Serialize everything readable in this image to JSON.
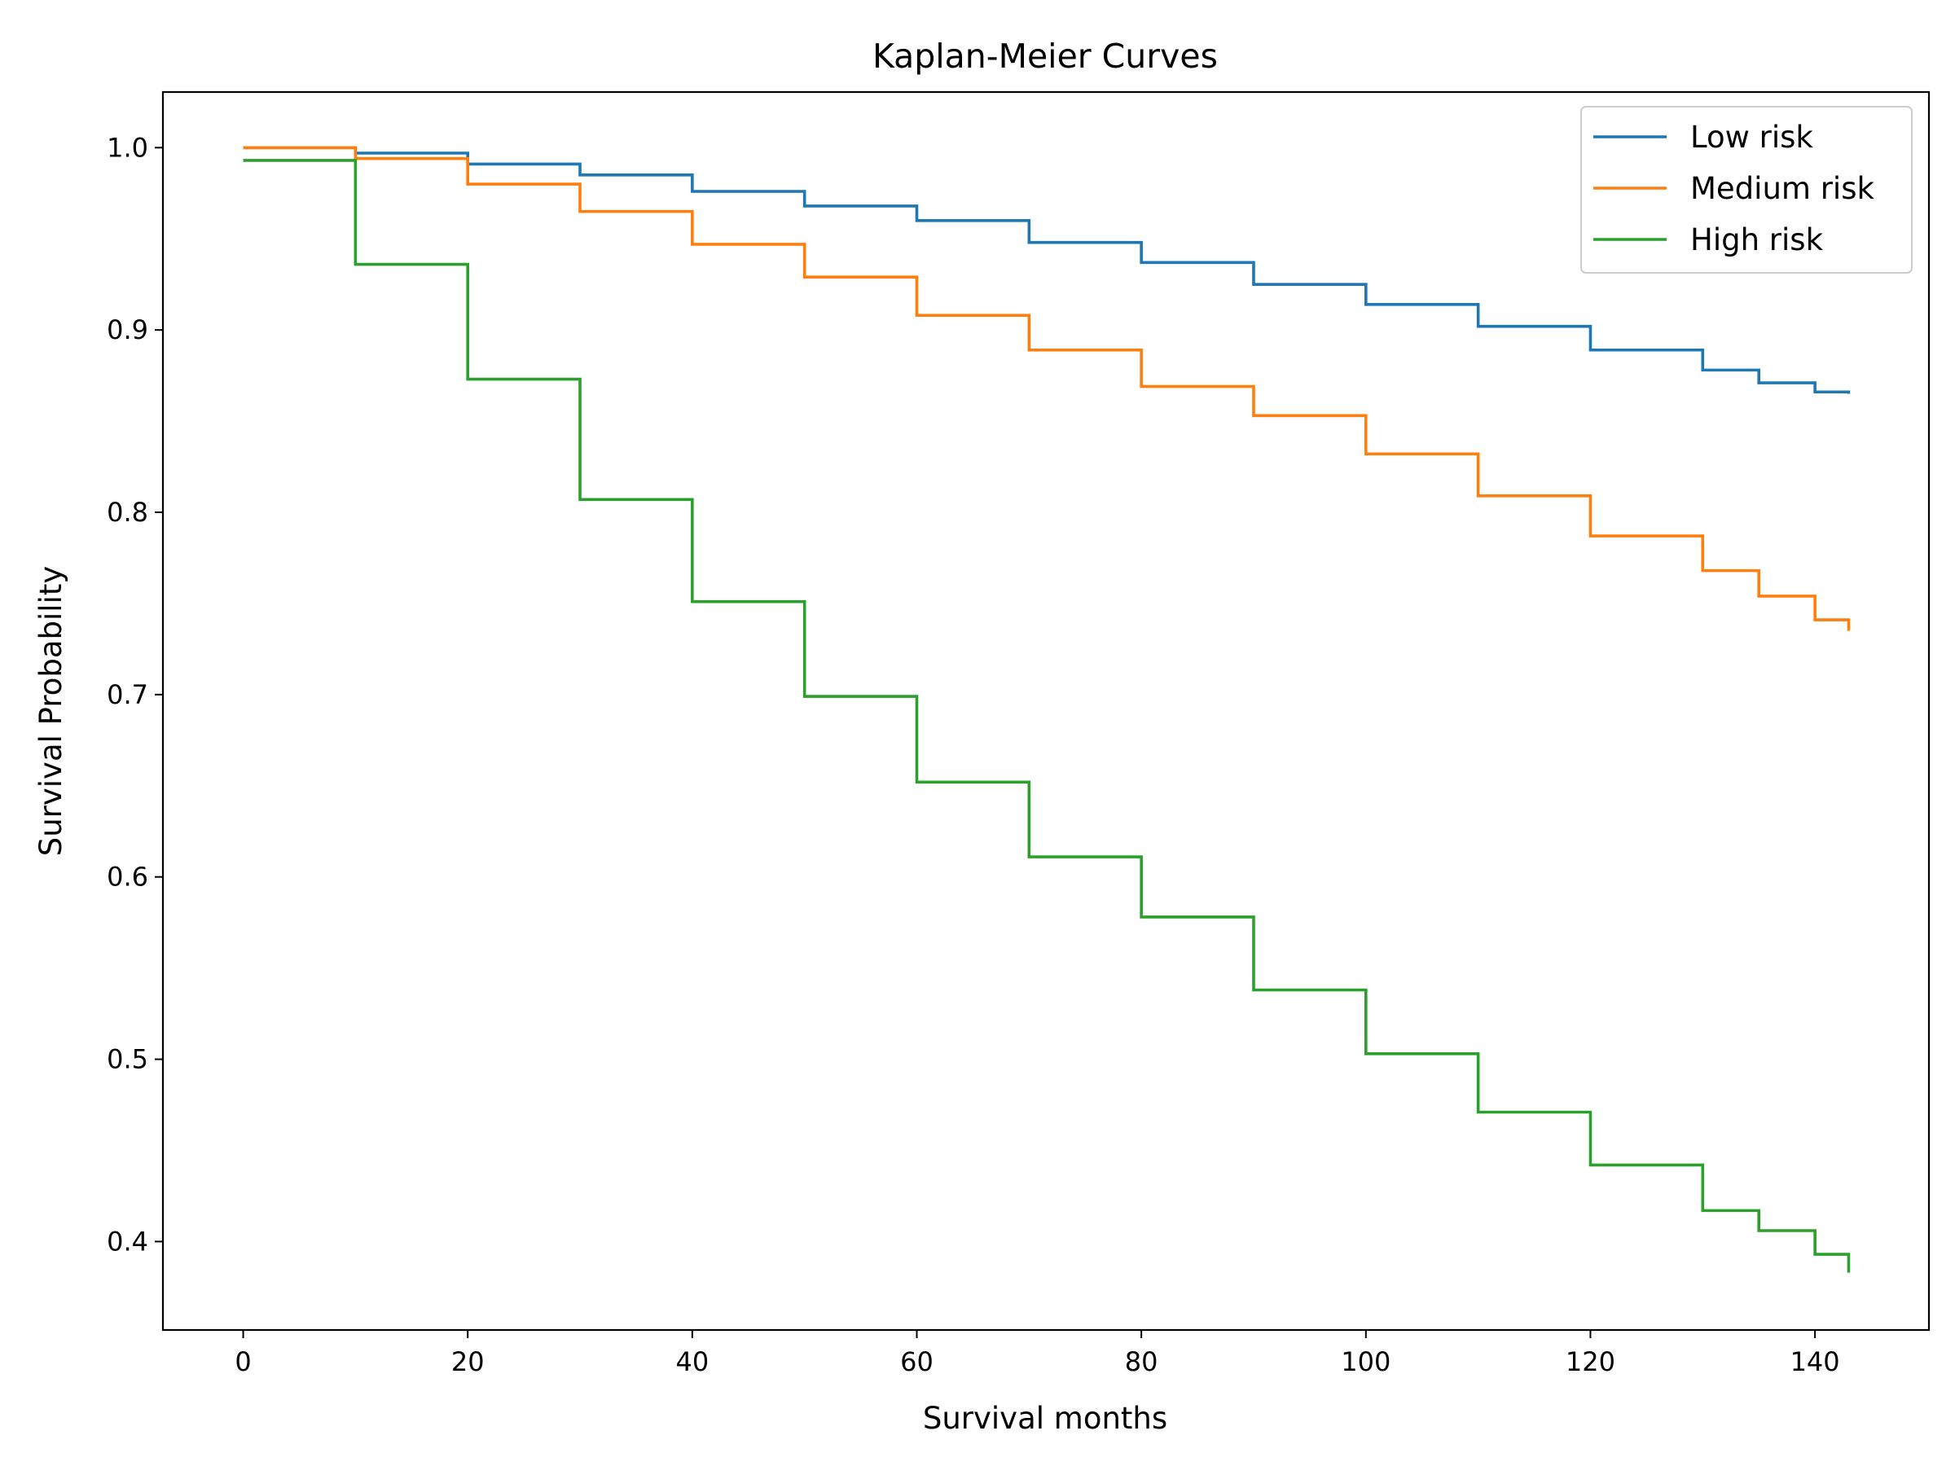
{
  "chart_data": {
    "type": "line",
    "step": true,
    "title": "Kaplan-Meier Curves",
    "xlabel": "Survival months",
    "ylabel": "Survival Probability",
    "xlim": [
      -7.15,
      150.15
    ],
    "ylim": [
      0.3515,
      1.0305
    ],
    "xticks": [
      0,
      20,
      40,
      60,
      80,
      100,
      120,
      140
    ],
    "yticks": [
      0.4,
      0.5,
      0.6,
      0.7,
      0.8,
      0.9,
      1.0
    ],
    "xtick_labels": [
      "0",
      "20",
      "40",
      "60",
      "80",
      "100",
      "120",
      "140"
    ],
    "ytick_labels": [
      "0.4",
      "0.5",
      "0.6",
      "0.7",
      "0.8",
      "0.9",
      "1.0"
    ],
    "grid": false,
    "legend_position": "top-right",
    "series": [
      {
        "name": "Low risk",
        "color": "#1f77b4",
        "x": [
          0,
          10,
          20,
          30,
          40,
          50,
          60,
          70,
          80,
          90,
          100,
          110,
          120,
          130,
          135,
          140,
          143
        ],
        "y": [
          1.0,
          0.997,
          0.991,
          0.985,
          0.976,
          0.968,
          0.96,
          0.948,
          0.937,
          0.925,
          0.914,
          0.902,
          0.889,
          0.878,
          0.871,
          0.866,
          0.865
        ]
      },
      {
        "name": "Medium risk",
        "color": "#ff7f0e",
        "x": [
          0,
          10,
          20,
          30,
          40,
          50,
          60,
          70,
          80,
          90,
          100,
          110,
          120,
          130,
          135,
          140,
          143
        ],
        "y": [
          1.0,
          0.994,
          0.98,
          0.965,
          0.947,
          0.929,
          0.908,
          0.889,
          0.869,
          0.853,
          0.832,
          0.809,
          0.787,
          0.768,
          0.754,
          0.741,
          0.735
        ]
      },
      {
        "name": "High risk",
        "color": "#2ca02c",
        "x": [
          0,
          10,
          20,
          30,
          40,
          50,
          60,
          70,
          80,
          90,
          100,
          110,
          120,
          130,
          135,
          140,
          143
        ],
        "y": [
          0.993,
          0.936,
          0.873,
          0.807,
          0.751,
          0.699,
          0.652,
          0.611,
          0.578,
          0.538,
          0.503,
          0.471,
          0.442,
          0.417,
          0.406,
          0.393,
          0.383
        ]
      }
    ]
  }
}
